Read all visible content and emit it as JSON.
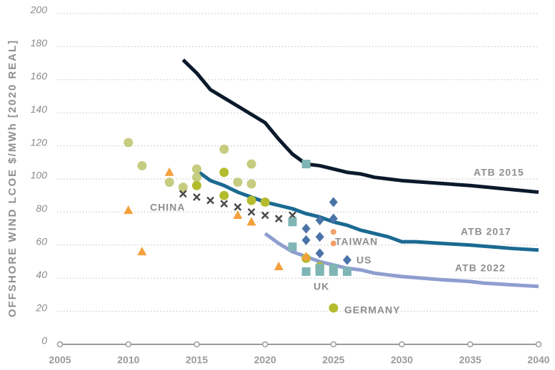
{
  "chart_data": {
    "type": "scatter",
    "ylabel": "OFFSHORE WIND LCOE $/MWh [2020 REAL]",
    "xlim": [
      2005,
      2040
    ],
    "xticks": [
      2005,
      2010,
      2015,
      2020,
      2025,
      2030,
      2035,
      2040
    ],
    "ylim": [
      0,
      200
    ],
    "yticks": [
      0,
      20,
      40,
      60,
      80,
      100,
      120,
      140,
      160,
      180,
      200
    ],
    "grid": true,
    "series": [
      {
        "name": "ATB 2015",
        "marker": "line",
        "color": "#0b1a2b",
        "x": [
          2014,
          2015,
          2016,
          2017,
          2018,
          2019,
          2020,
          2021,
          2022,
          2023,
          2024,
          2025,
          2026,
          2027,
          2028,
          2029,
          2030,
          2035,
          2040
        ],
        "values": [
          172,
          164,
          154,
          149,
          144,
          139,
          134,
          124,
          115,
          109,
          108,
          106,
          104,
          103,
          101,
          100,
          99,
          96,
          92
        ]
      },
      {
        "name": "ATB 2017",
        "marker": "line",
        "color": "#1b6a92",
        "x": [
          2015,
          2016,
          2017,
          2018,
          2019,
          2020,
          2021,
          2022,
          2023,
          2024,
          2025,
          2026,
          2027,
          2028,
          2029,
          2030,
          2031,
          2035,
          2038,
          2040
        ],
        "values": [
          105,
          99,
          96,
          92,
          89,
          86,
          84,
          82,
          79,
          77,
          74,
          72,
          69,
          67,
          65,
          62,
          62,
          60,
          58,
          57
        ]
      },
      {
        "name": "ATB 2022",
        "marker": "line",
        "color": "#8e9ecf",
        "x": [
          2020,
          2021,
          2022,
          2023,
          2024,
          2025,
          2026,
          2027,
          2028,
          2029,
          2030,
          2033,
          2035,
          2036,
          2038,
          2040
        ],
        "values": [
          67,
          61,
          56,
          53,
          50,
          48,
          46,
          45,
          43,
          42,
          41,
          39,
          38,
          37,
          36,
          35
        ]
      },
      {
        "marker": "circle",
        "color": "#c6cc80",
        "x": [
          2010,
          2011,
          2013,
          2014,
          2015,
          2015,
          2017,
          2018,
          2019,
          2019
        ],
        "values": [
          122,
          108,
          98,
          95,
          106,
          101,
          118,
          98,
          109,
          97
        ]
      },
      {
        "name": "GERMANY",
        "marker": "circle",
        "color": "#b4bc2e",
        "x": [
          2015,
          2017,
          2017,
          2019,
          2020,
          2023,
          2024,
          2025
        ],
        "values": [
          96,
          104,
          90,
          87,
          86,
          52,
          47,
          22
        ]
      },
      {
        "marker": "triangle",
        "color": "#f4a03c",
        "x": [
          2010,
          2011,
          2013,
          2018,
          2019,
          2021,
          2023
        ],
        "values": [
          81,
          56,
          104,
          78,
          74,
          47,
          53
        ]
      },
      {
        "name": "CHINA",
        "marker": "x",
        "color": "#4a4a4a",
        "x": [
          2014,
          2015,
          2016,
          2017,
          2018,
          2019,
          2020,
          2021,
          2022
        ],
        "values": [
          91,
          89,
          87,
          85,
          83,
          80,
          78,
          76,
          78
        ]
      },
      {
        "name": "UK",
        "marker": "square",
        "color": "#7fb5b5",
        "x": [
          2022,
          2022,
          2023,
          2023,
          2024,
          2024,
          2025,
          2025,
          2026
        ],
        "values": [
          74,
          59,
          109,
          44,
          44,
          46,
          44,
          46,
          44
        ]
      },
      {
        "name": "US",
        "marker": "diamond",
        "color": "#4a73a7",
        "x": [
          2023,
          2023,
          2024,
          2024,
          2024,
          2025,
          2025,
          2026
        ],
        "values": [
          70,
          63,
          75,
          65,
          55,
          86,
          76,
          51
        ]
      },
      {
        "name": "TAIWAN",
        "marker": "dot",
        "color": "#f2a06c",
        "x": [
          2025,
          2025
        ],
        "values": [
          68,
          61
        ]
      }
    ]
  }
}
